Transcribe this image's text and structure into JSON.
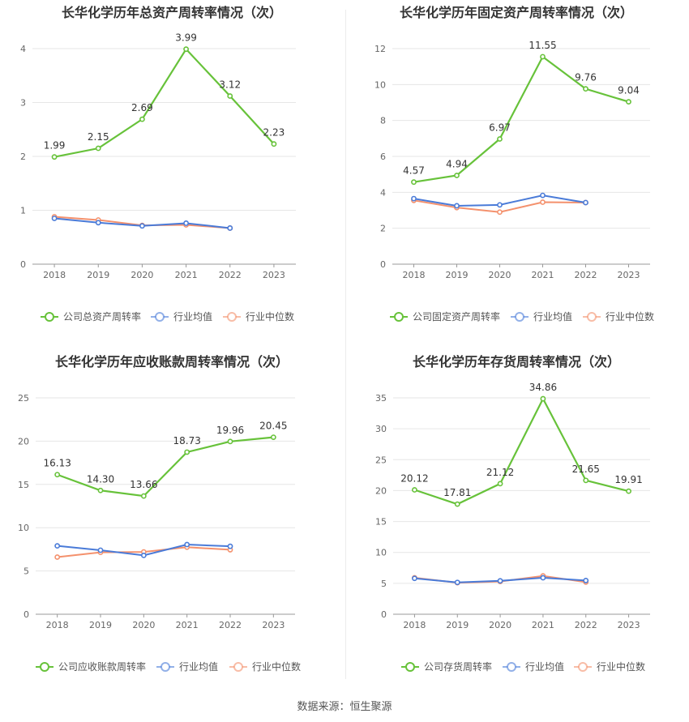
{
  "source": "数据来源：恒生聚源",
  "chart_data": [
    {
      "type": "line",
      "title": "长华化学历年总资产周转率情况（次）",
      "categories": [
        "2018",
        "2019",
        "2020",
        "2021",
        "2022",
        "2023"
      ],
      "ylim": [
        0,
        4
      ],
      "yticks": [
        0,
        1,
        2,
        3,
        4
      ],
      "ytick_labels": [
        "0",
        "1",
        "2",
        "3",
        "4"
      ],
      "grid": true,
      "legend_position": "bottom",
      "series": [
        {
          "name": "公司总资产周转率",
          "color": "#67c23a",
          "values": [
            1.99,
            2.15,
            2.69,
            3.99,
            3.12,
            2.23
          ],
          "labels": [
            "1.99",
            "2.15",
            "2.69",
            "3.99",
            "3.12",
            "2.23"
          ]
        },
        {
          "name": "行业均值",
          "color": "#4a7bd8",
          "values": [
            0.85,
            0.77,
            0.71,
            0.76,
            0.67,
            null
          ]
        },
        {
          "name": "行业中位数",
          "color": "#f4916d",
          "values": [
            0.88,
            0.82,
            0.72,
            0.73,
            0.67,
            null
          ]
        }
      ]
    },
    {
      "type": "line",
      "title": "长华化学历年固定资产周转率情况（次）",
      "categories": [
        "2018",
        "2019",
        "2020",
        "2021",
        "2022",
        "2023"
      ],
      "ylim": [
        0,
        12
      ],
      "yticks": [
        0,
        2,
        4,
        6,
        8,
        10,
        12
      ],
      "ytick_labels": [
        "0",
        "2",
        "4",
        "6",
        "8",
        "10",
        "12"
      ],
      "grid": true,
      "legend_position": "bottom",
      "series": [
        {
          "name": "公司固定资产周转率",
          "color": "#67c23a",
          "values": [
            4.57,
            4.94,
            6.97,
            11.55,
            9.76,
            9.04
          ],
          "labels": [
            "4.57",
            "4.94",
            "6.97",
            "11.55",
            "9.76",
            "9.04"
          ]
        },
        {
          "name": "行业均值",
          "color": "#4a7bd8",
          "values": [
            3.65,
            3.25,
            3.3,
            3.83,
            3.43,
            null
          ]
        },
        {
          "name": "行业中位数",
          "color": "#f4916d",
          "values": [
            3.55,
            3.15,
            2.9,
            3.45,
            3.43,
            null
          ]
        }
      ]
    },
    {
      "type": "line",
      "title": "长华化学历年应收账款周转率情况（次）",
      "categories": [
        "2018",
        "2019",
        "2020",
        "2021",
        "2022",
        "2023"
      ],
      "ylim": [
        0,
        25
      ],
      "yticks": [
        0,
        5,
        10,
        15,
        20,
        25
      ],
      "ytick_labels": [
        "0",
        "5",
        "10",
        "15",
        "20",
        "25"
      ],
      "grid": true,
      "legend_position": "bottom",
      "series": [
        {
          "name": "公司应收账款周转率",
          "color": "#67c23a",
          "values": [
            16.13,
            14.3,
            13.66,
            18.73,
            19.96,
            20.45
          ],
          "labels": [
            "16.13",
            "14.30",
            "13.66",
            "18.73",
            "19.96",
            "20.45"
          ]
        },
        {
          "name": "行业均值",
          "color": "#4a7bd8",
          "values": [
            7.9,
            7.4,
            6.8,
            8.05,
            7.85,
            null
          ]
        },
        {
          "name": "行业中位数",
          "color": "#f4916d",
          "values": [
            6.6,
            7.15,
            7.2,
            7.75,
            7.45,
            null
          ]
        }
      ]
    },
    {
      "type": "line",
      "title": "长华化学历年存货周转率情况（次）",
      "categories": [
        "2018",
        "2019",
        "2020",
        "2021",
        "2022",
        "2023"
      ],
      "ylim": [
        0,
        35
      ],
      "yticks": [
        0,
        5,
        10,
        15,
        20,
        25,
        30,
        35
      ],
      "ytick_labels": [
        "0",
        "5",
        "10",
        "15",
        "20",
        "25",
        "30",
        "35"
      ],
      "grid": true,
      "legend_position": "bottom",
      "series": [
        {
          "name": "公司存货周转率",
          "color": "#67c23a",
          "values": [
            20.12,
            17.81,
            21.12,
            34.86,
            21.65,
            19.91
          ],
          "labels": [
            "20.12",
            "17.81",
            "21.12",
            "34.86",
            "21.65",
            "19.91"
          ]
        },
        {
          "name": "行业均值",
          "color": "#4a7bd8",
          "values": [
            5.8,
            5.15,
            5.4,
            5.9,
            5.45,
            null
          ]
        },
        {
          "name": "行业中位数",
          "color": "#f4916d",
          "values": [
            5.9,
            5.1,
            5.3,
            6.2,
            5.2,
            null
          ]
        }
      ]
    }
  ]
}
